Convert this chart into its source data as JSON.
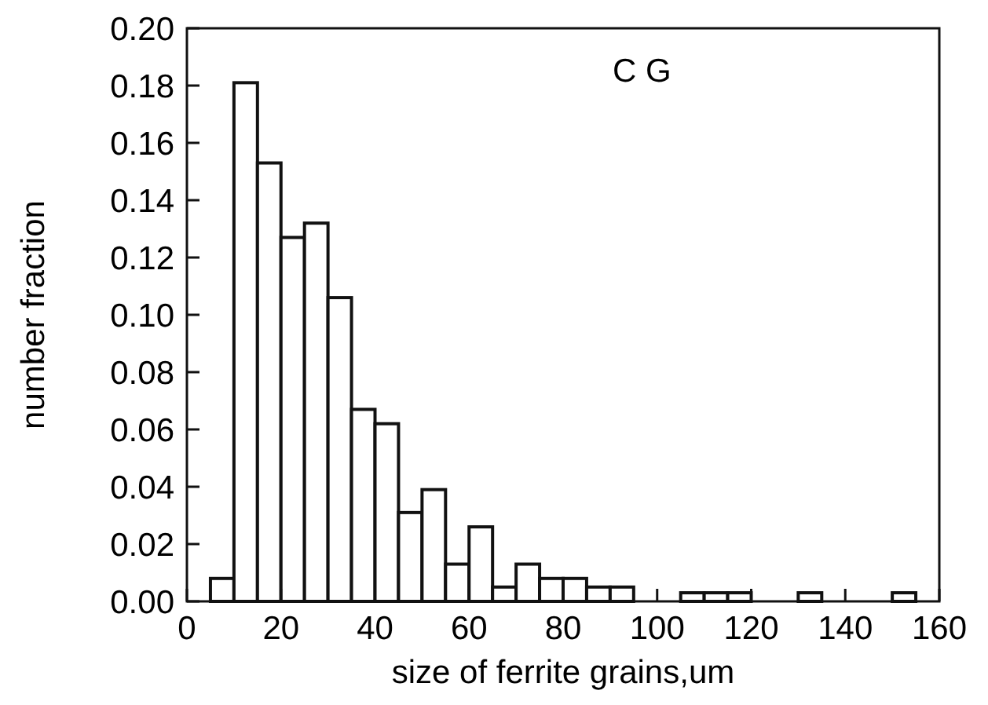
{
  "chart_data": {
    "type": "histogram",
    "xlabel": "size of ferrite grains,um",
    "ylabel": "number fraction",
    "annotations": [
      "C G"
    ],
    "bins": [
      5,
      10,
      15,
      20,
      25,
      30,
      35,
      40,
      45,
      50,
      55,
      60,
      65,
      70,
      75,
      80,
      85,
      90,
      95,
      100,
      105,
      110,
      115,
      120,
      125,
      130,
      135,
      140,
      145,
      150,
      155
    ],
    "values": [
      0.008,
      0.181,
      0.153,
      0.127,
      0.132,
      0.106,
      0.067,
      0.062,
      0.031,
      0.039,
      0.013,
      0.026,
      0.005,
      0.013,
      0.008,
      0.008,
      0.005,
      0.005,
      0,
      0,
      0.003,
      0.003,
      0.003,
      0,
      0,
      0.003,
      0,
      0,
      0,
      0.003
    ],
    "color": "#ffffff",
    "xlim": [
      0,
      160
    ],
    "xticks": [
      0,
      20,
      40,
      60,
      80,
      100,
      120,
      140,
      160
    ],
    "ylim": [
      0,
      0.2
    ],
    "yticks": [
      {
        "value": 0,
        "label": "0.00"
      },
      {
        "value": 0.02,
        "label": "0.02"
      },
      {
        "value": 0.04,
        "label": "0.04"
      },
      {
        "value": 0.06,
        "label": "0.06"
      },
      {
        "value": 0.08,
        "label": "0.08"
      },
      {
        "value": 0.1,
        "label": "0.10"
      },
      {
        "value": 0.12,
        "label": "0.12"
      },
      {
        "value": 0.14,
        "label": "0.14"
      },
      {
        "value": 0.16,
        "label": "0.16"
      },
      {
        "value": 0.18,
        "label": "0.18"
      },
      {
        "value": 0.2,
        "label": "0.20"
      }
    ]
  }
}
